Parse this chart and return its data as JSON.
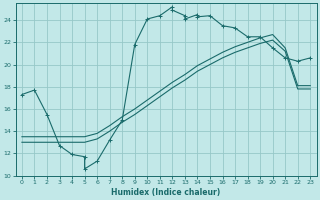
{
  "xlabel": "Humidex (Indice chaleur)",
  "xlim": [
    -0.5,
    23.5
  ],
  "ylim": [
    10,
    25.5
  ],
  "xticks": [
    0,
    1,
    2,
    3,
    4,
    5,
    6,
    7,
    8,
    9,
    10,
    11,
    12,
    13,
    14,
    15,
    16,
    17,
    18,
    19,
    20,
    21,
    22,
    23
  ],
  "yticks": [
    10,
    12,
    14,
    16,
    18,
    20,
    22,
    24
  ],
  "bg_color": "#c2e8e8",
  "line_color": "#1a6b6b",
  "grid_color": "#96c8c8",
  "curve1_x": [
    0,
    1,
    2,
    3,
    4,
    5,
    5,
    6,
    7,
    8,
    9,
    10,
    11,
    12,
    12,
    13,
    13,
    14,
    14,
    15,
    16,
    17,
    18,
    19,
    20,
    21,
    22,
    23
  ],
  "curve1_y": [
    17.3,
    17.7,
    15.5,
    12.7,
    11.9,
    11.7,
    10.6,
    11.3,
    13.2,
    15.0,
    21.8,
    24.1,
    24.4,
    25.2,
    24.9,
    24.4,
    24.1,
    24.5,
    24.3,
    24.4,
    23.5,
    23.3,
    22.5,
    22.5,
    21.5,
    20.6,
    20.3,
    20.6
  ],
  "curve2_x": [
    0,
    2,
    3,
    5,
    6,
    7,
    8,
    9,
    10,
    11,
    12,
    13,
    14,
    15,
    16,
    17,
    18,
    19,
    20,
    21,
    22,
    23
  ],
  "curve2_y": [
    13.0,
    13.0,
    13.0,
    13.0,
    13.3,
    14.0,
    14.8,
    15.5,
    16.3,
    17.1,
    17.9,
    18.6,
    19.4,
    20.0,
    20.6,
    21.1,
    21.5,
    21.9,
    22.2,
    21.2,
    17.8,
    17.8
  ],
  "curve3_x": [
    0,
    2,
    3,
    5,
    6,
    7,
    8,
    9,
    10,
    11,
    12,
    13,
    14,
    15,
    16,
    17,
    18,
    19,
    20,
    21,
    22,
    23
  ],
  "curve3_y": [
    13.5,
    13.5,
    13.5,
    13.5,
    13.8,
    14.5,
    15.3,
    16.0,
    16.8,
    17.6,
    18.4,
    19.1,
    19.9,
    20.5,
    21.1,
    21.6,
    22.0,
    22.4,
    22.7,
    21.5,
    18.1,
    18.1
  ]
}
